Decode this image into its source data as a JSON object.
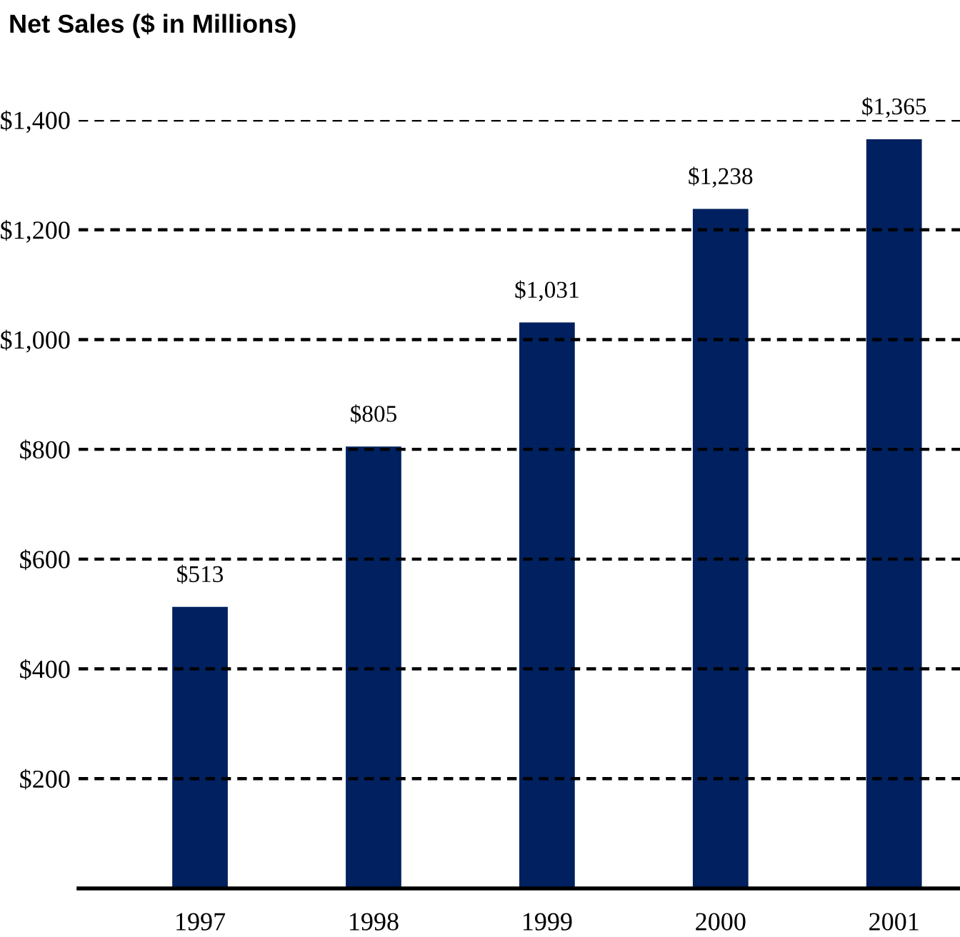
{
  "chart_data": {
    "type": "bar",
    "title": "Net Sales ($ in Millions)",
    "categories": [
      "1997",
      "1998",
      "1999",
      "2000",
      "2001"
    ],
    "values": [
      513,
      805,
      1031,
      1238,
      1365
    ],
    "value_labels": [
      "$513",
      "$805",
      "$1,031",
      "$1,238",
      "$1,365"
    ],
    "color": "#00205f",
    "ylim": [
      0,
      1400
    ],
    "yticks": [
      {
        "value": 200,
        "label": "$200"
      },
      {
        "value": 400,
        "label": "$400"
      },
      {
        "value": 600,
        "label": "$600"
      },
      {
        "value": 800,
        "label": "$800"
      },
      {
        "value": 1000,
        "label": "$1,000"
      },
      {
        "value": 1200,
        "label": "$1,200"
      },
      {
        "value": 1400,
        "label": "$1,400"
      }
    ],
    "grid": "y",
    "line_style": "dashed"
  }
}
